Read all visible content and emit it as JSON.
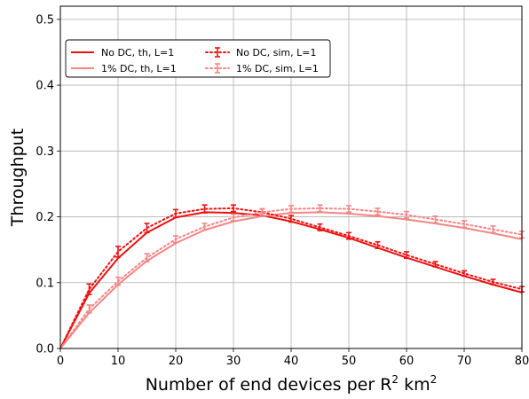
{
  "chart_data": {
    "type": "line",
    "title": "",
    "xlabel_parts": [
      "Number of end devices per R",
      "2",
      " km",
      "2"
    ],
    "ylabel": "Throughput",
    "xlim": [
      0,
      80
    ],
    "ylim": [
      0,
      0.52
    ],
    "x_ticks": [
      "0",
      "10",
      "20",
      "30",
      "40",
      "50",
      "60",
      "70",
      "80"
    ],
    "y_ticks": [
      "0.0",
      "0.1",
      "0.2",
      "0.3",
      "0.4",
      "0.5"
    ],
    "grid": true,
    "legend_position": "upper-left",
    "series": [
      {
        "name": "No DC, th, L=1",
        "style": "solid",
        "color": "#ee1111",
        "x": [
          0,
          5,
          10,
          15,
          20,
          25,
          30,
          35,
          40,
          45,
          50,
          55,
          60,
          65,
          70,
          75,
          80
        ],
        "y": [
          0.0,
          0.084,
          0.137,
          0.176,
          0.199,
          0.207,
          0.206,
          0.202,
          0.193,
          0.181,
          0.168,
          0.153,
          0.138,
          0.124,
          0.11,
          0.097,
          0.085
        ]
      },
      {
        "name": "1% DC, th, L=1",
        "style": "solid",
        "color": "#f48585",
        "x": [
          0,
          5,
          10,
          15,
          20,
          25,
          30,
          35,
          40,
          45,
          50,
          55,
          60,
          65,
          70,
          75,
          80
        ],
        "y": [
          0.0,
          0.054,
          0.097,
          0.133,
          0.16,
          0.18,
          0.193,
          0.201,
          0.206,
          0.207,
          0.205,
          0.201,
          0.196,
          0.19,
          0.183,
          0.175,
          0.166
        ]
      },
      {
        "name": "No DC, sim, L=1",
        "style": "dotted",
        "color": "#ee1111",
        "x": [
          0,
          5,
          10,
          15,
          20,
          25,
          30,
          35,
          40,
          45,
          50,
          55,
          60,
          65,
          70,
          75,
          80
        ],
        "y": [
          0.0,
          0.09,
          0.147,
          0.183,
          0.205,
          0.212,
          0.213,
          0.207,
          0.197,
          0.184,
          0.171,
          0.157,
          0.142,
          0.128,
          0.114,
          0.101,
          0.09
        ],
        "err": [
          0,
          0.008,
          0.008,
          0.007,
          0.006,
          0.006,
          0.005,
          0.005,
          0.005,
          0.005,
          0.005,
          0.005,
          0.005,
          0.004,
          0.004,
          0.004,
          0.004
        ]
      },
      {
        "name": "1% DC, sim, L=1",
        "style": "dotted",
        "color": "#f48585",
        "x": [
          0,
          5,
          10,
          15,
          20,
          25,
          30,
          35,
          40,
          45,
          50,
          55,
          60,
          65,
          70,
          75,
          80
        ],
        "y": [
          0.0,
          0.06,
          0.102,
          0.138,
          0.166,
          0.185,
          0.199,
          0.207,
          0.212,
          0.213,
          0.212,
          0.208,
          0.203,
          0.196,
          0.189,
          0.181,
          0.173
        ],
        "err": [
          0,
          0.006,
          0.006,
          0.006,
          0.005,
          0.005,
          0.005,
          0.005,
          0.005,
          0.005,
          0.005,
          0.005,
          0.005,
          0.005,
          0.005,
          0.005,
          0.005
        ]
      }
    ]
  }
}
